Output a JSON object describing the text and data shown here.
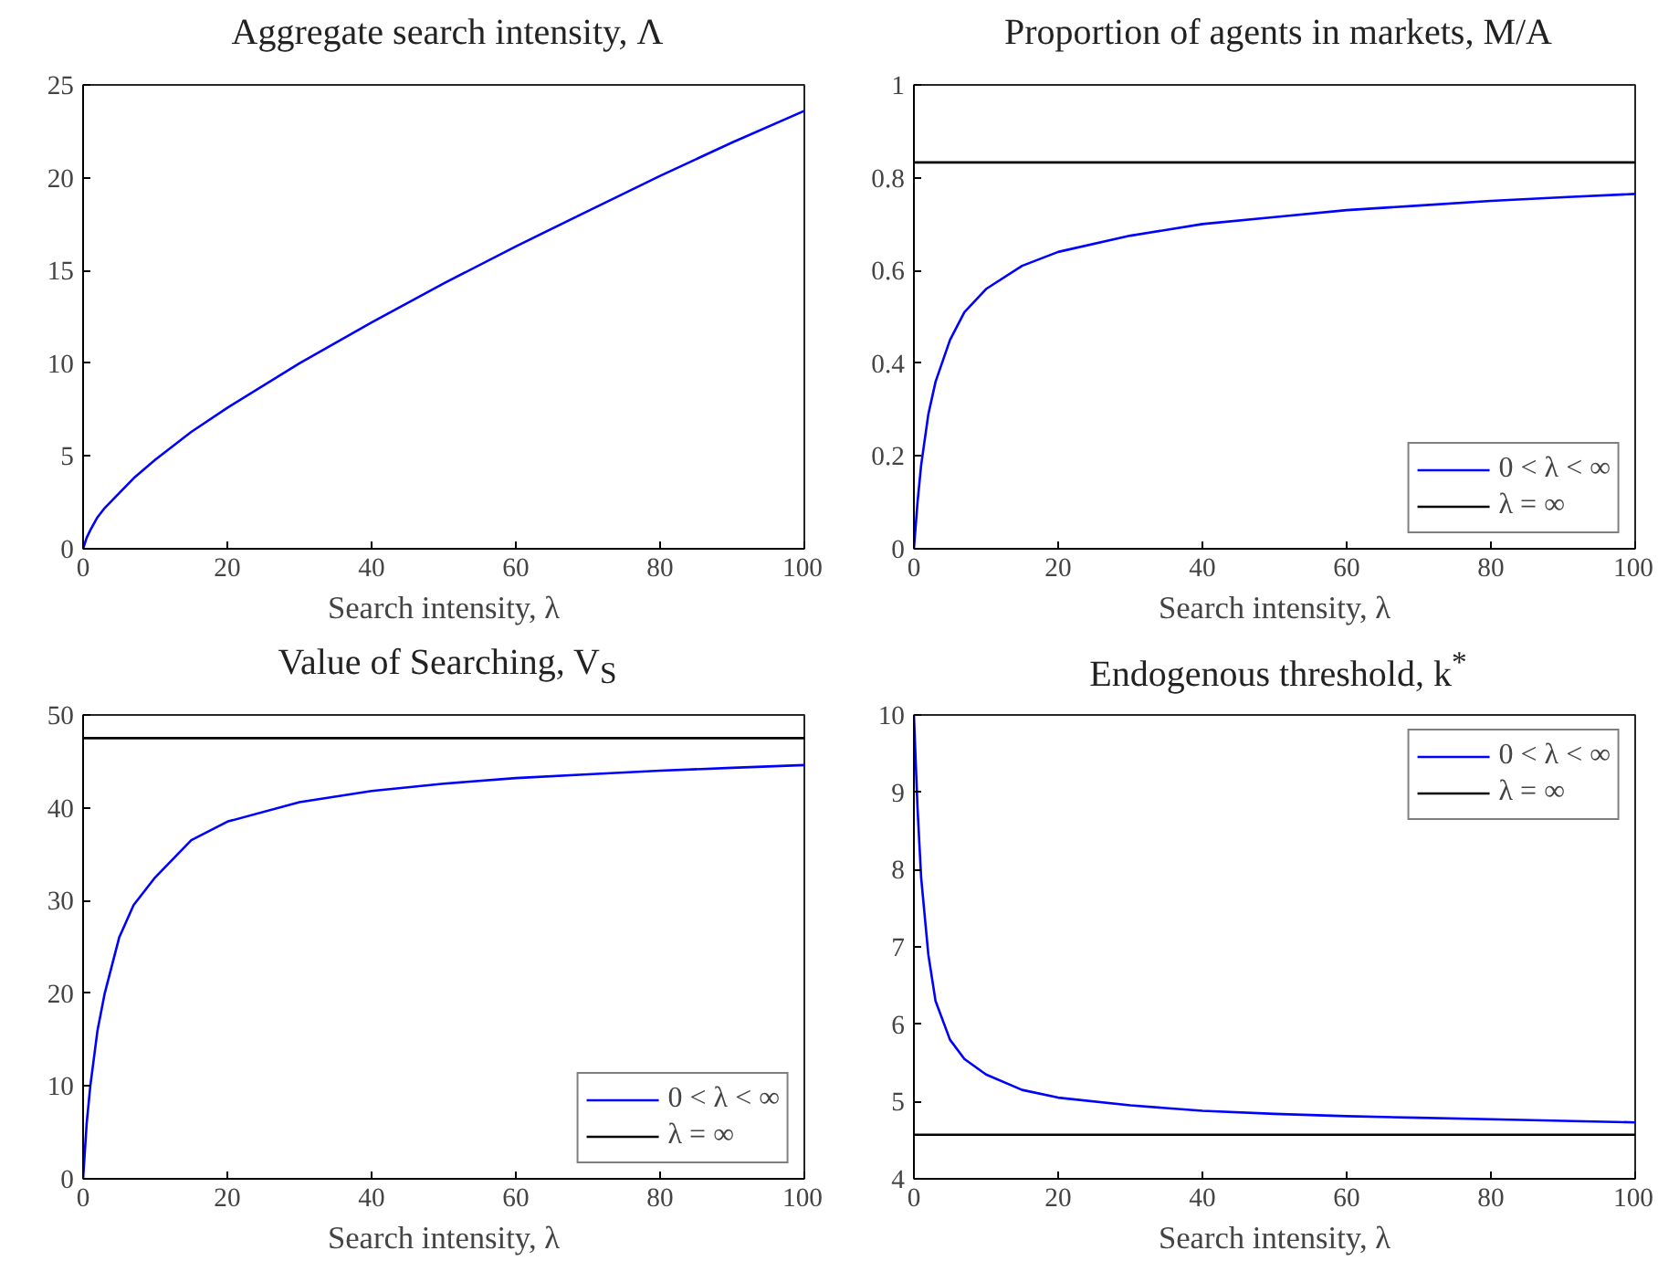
{
  "chart_data": [
    {
      "type": "line",
      "title": "Aggregate search intensity, Λ",
      "xlabel": "Search intensity, λ",
      "xlim": [
        0,
        100
      ],
      "xticks": [
        0,
        20,
        40,
        60,
        80,
        100
      ],
      "ylim": [
        0,
        25
      ],
      "yticks": [
        0,
        5,
        10,
        15,
        20,
        25
      ],
      "grid": false,
      "legend": false,
      "x": [
        0,
        0.5,
        1,
        2,
        3,
        5,
        7,
        10,
        15,
        20,
        30,
        40,
        50,
        60,
        70,
        80,
        90,
        100
      ],
      "series": [
        {
          "color": "#0000ff",
          "values": [
            0,
            0.6,
            1.0,
            1.7,
            2.2,
            3.0,
            3.8,
            4.8,
            6.3,
            7.6,
            10.0,
            12.2,
            14.3,
            16.3,
            18.2,
            20.1,
            21.9,
            23.6
          ]
        }
      ]
    },
    {
      "type": "line",
      "title": "Proportion of agents in markets, M/A",
      "xlabel": "Search intensity, λ",
      "xlim": [
        0,
        100
      ],
      "xticks": [
        0,
        20,
        40,
        60,
        80,
        100
      ],
      "ylim": [
        0,
        1
      ],
      "yticks": [
        0,
        {
          "value": 0.2,
          "label": "0.2"
        },
        {
          "value": 0.4,
          "label": "0.4"
        },
        {
          "value": 0.6,
          "label": "0.6"
        },
        {
          "value": 0.8,
          "label": "0.8"
        },
        1
      ],
      "grid": false,
      "legend": "bottom right",
      "x": [
        0,
        0.5,
        1,
        2,
        3,
        5,
        7,
        10,
        15,
        20,
        30,
        40,
        50,
        60,
        70,
        80,
        90,
        100
      ],
      "series": [
        {
          "name": "0 < λ < ∞",
          "color": "#0000ff",
          "values": [
            0,
            0.1,
            0.18,
            0.29,
            0.36,
            0.45,
            0.51,
            0.56,
            0.61,
            0.64,
            0.675,
            0.7,
            0.715,
            0.73,
            0.74,
            0.75,
            0.758,
            0.765
          ]
        }
      ],
      "ref_lines": [
        {
          "axis": "y",
          "value": 0.833,
          "label": "λ = ∞",
          "color": "#000000"
        }
      ]
    },
    {
      "type": "line",
      "title": "Value of Searching, V$_{S}$",
      "xlabel": "Search intensity, λ",
      "xlim": [
        0,
        100
      ],
      "xticks": [
        0,
        20,
        40,
        60,
        80,
        100
      ],
      "ylim": [
        0,
        50
      ],
      "yticks": [
        0,
        10,
        20,
        30,
        40,
        50
      ],
      "grid": false,
      "legend": "bottom right",
      "x": [
        0,
        0.5,
        1,
        2,
        3,
        5,
        7,
        10,
        15,
        20,
        30,
        40,
        50,
        60,
        70,
        80,
        90,
        100
      ],
      "series": [
        {
          "name": "0 < λ < ∞",
          "color": "#0000ff",
          "values": [
            0,
            6,
            10,
            16,
            20,
            26,
            29.5,
            32.5,
            36.5,
            38.5,
            40.6,
            41.8,
            42.6,
            43.2,
            43.6,
            44.0,
            44.3,
            44.6
          ]
        }
      ],
      "ref_lines": [
        {
          "axis": "y",
          "value": 47.5,
          "label": "λ = ∞",
          "color": "#000000"
        }
      ]
    },
    {
      "type": "line",
      "title": "Endogenous threshold, k$^{*}$",
      "xlabel": "Search intensity, λ",
      "xlim": [
        0,
        100
      ],
      "xticks": [
        0,
        20,
        40,
        60,
        80,
        100
      ],
      "ylim": [
        4,
        10
      ],
      "yticks": [
        4,
        5,
        6,
        7,
        8,
        9,
        10
      ],
      "grid": false,
      "legend": "top right",
      "x": [
        0,
        0.5,
        1,
        2,
        3,
        5,
        7,
        10,
        15,
        20,
        30,
        40,
        50,
        60,
        70,
        80,
        90,
        100
      ],
      "series": [
        {
          "name": "0 < λ < ∞",
          "color": "#0000ff",
          "values": [
            10,
            8.8,
            7.9,
            6.9,
            6.3,
            5.8,
            5.55,
            5.35,
            5.15,
            5.05,
            4.95,
            4.88,
            4.84,
            4.81,
            4.79,
            4.77,
            4.75,
            4.73
          ]
        }
      ],
      "ref_lines": [
        {
          "axis": "y",
          "value": 4.57,
          "label": "λ = ∞",
          "color": "#000000"
        }
      ]
    }
  ]
}
